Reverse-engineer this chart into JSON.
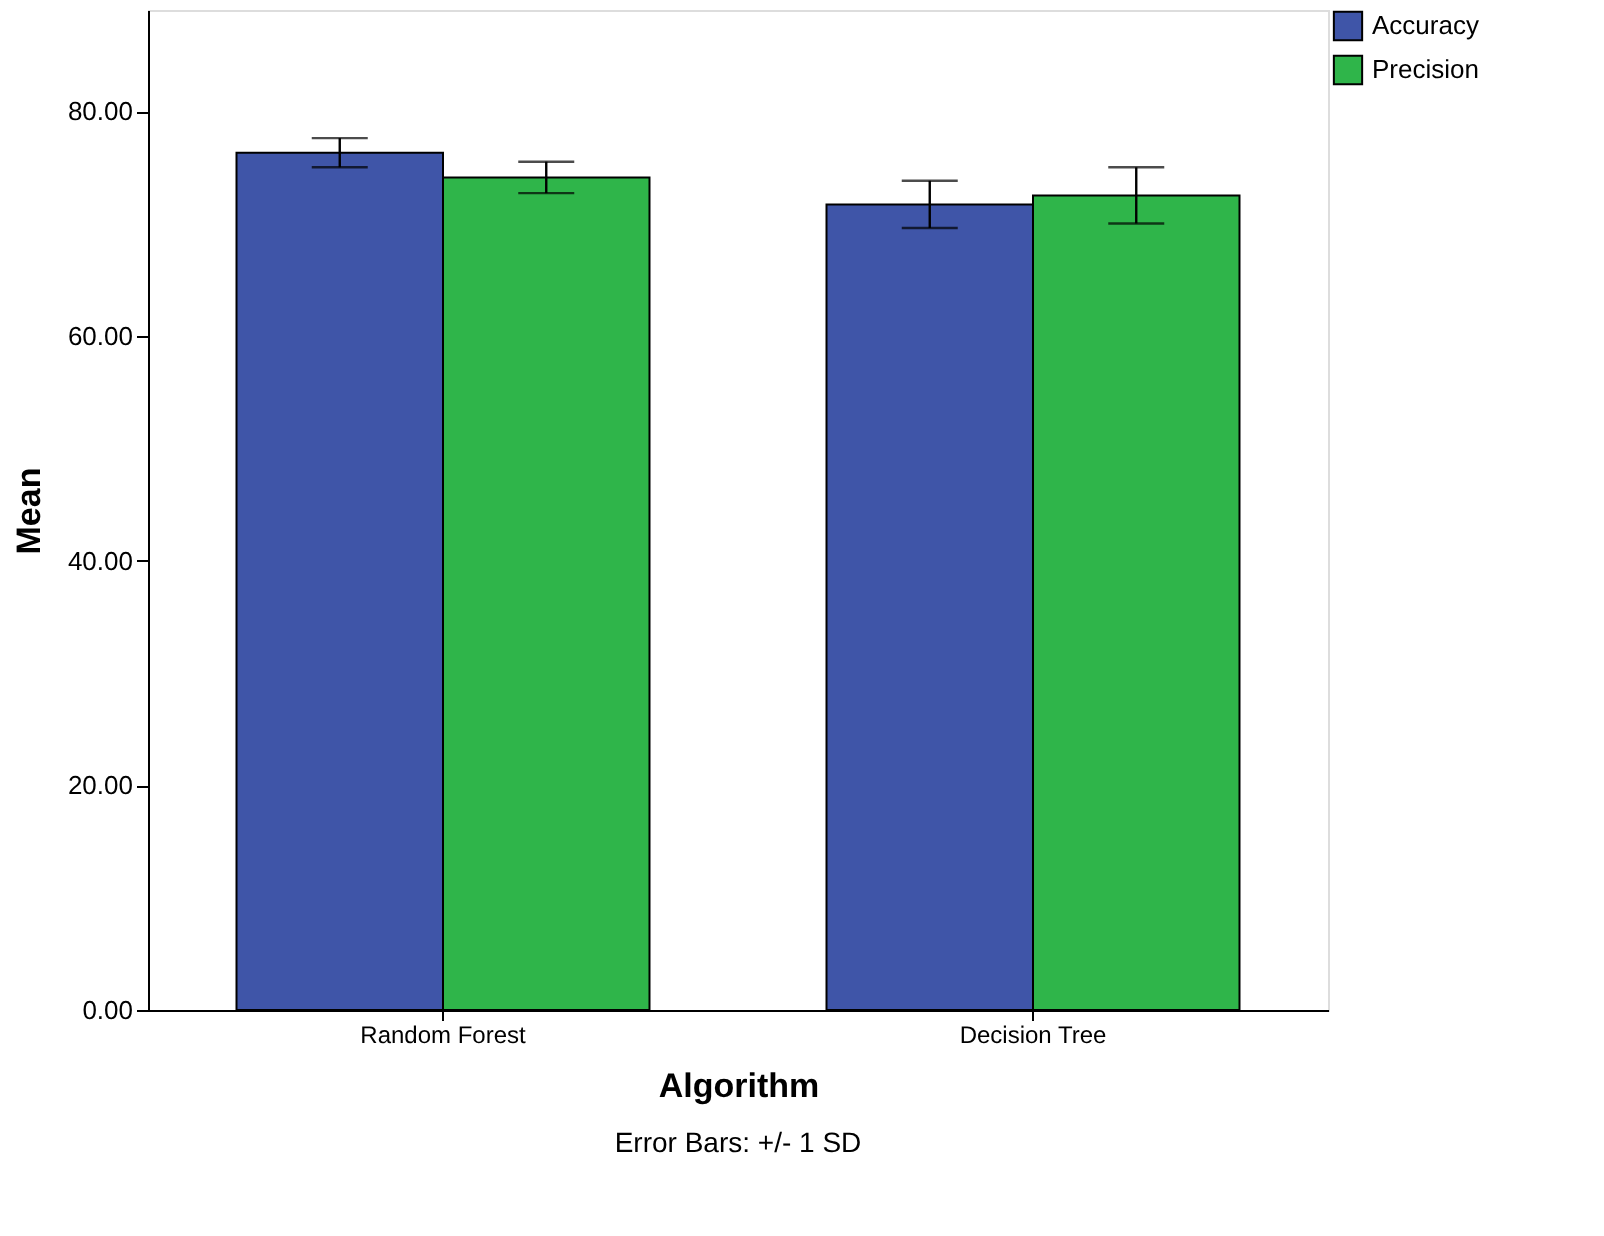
{
  "chart_data": {
    "type": "bar",
    "xlabel": "Algorithm",
    "ylabel": "Mean",
    "categories": [
      "Random Forest",
      "Decision Tree"
    ],
    "series": [
      {
        "name": "Accuracy",
        "color": "#3f55a8",
        "values": [
          76.3,
          71.7
        ],
        "errors": [
          1.3,
          2.1
        ]
      },
      {
        "name": "Precision",
        "color": "#2fb54a",
        "values": [
          74.1,
          72.5
        ],
        "errors": [
          1.4,
          2.5
        ]
      }
    ],
    "ylim": [
      0,
      89
    ],
    "yticks": [
      {
        "value": 0,
        "label": "0.00"
      },
      {
        "value": 20,
        "label": "20.00"
      },
      {
        "value": 40,
        "label": "40.00"
      },
      {
        "value": 60,
        "label": "60.00"
      },
      {
        "value": 80,
        "label": "80.00"
      }
    ],
    "grid": false,
    "legend": "top right",
    "annotations": [
      "Error Bars: +/- 1 SD"
    ]
  }
}
